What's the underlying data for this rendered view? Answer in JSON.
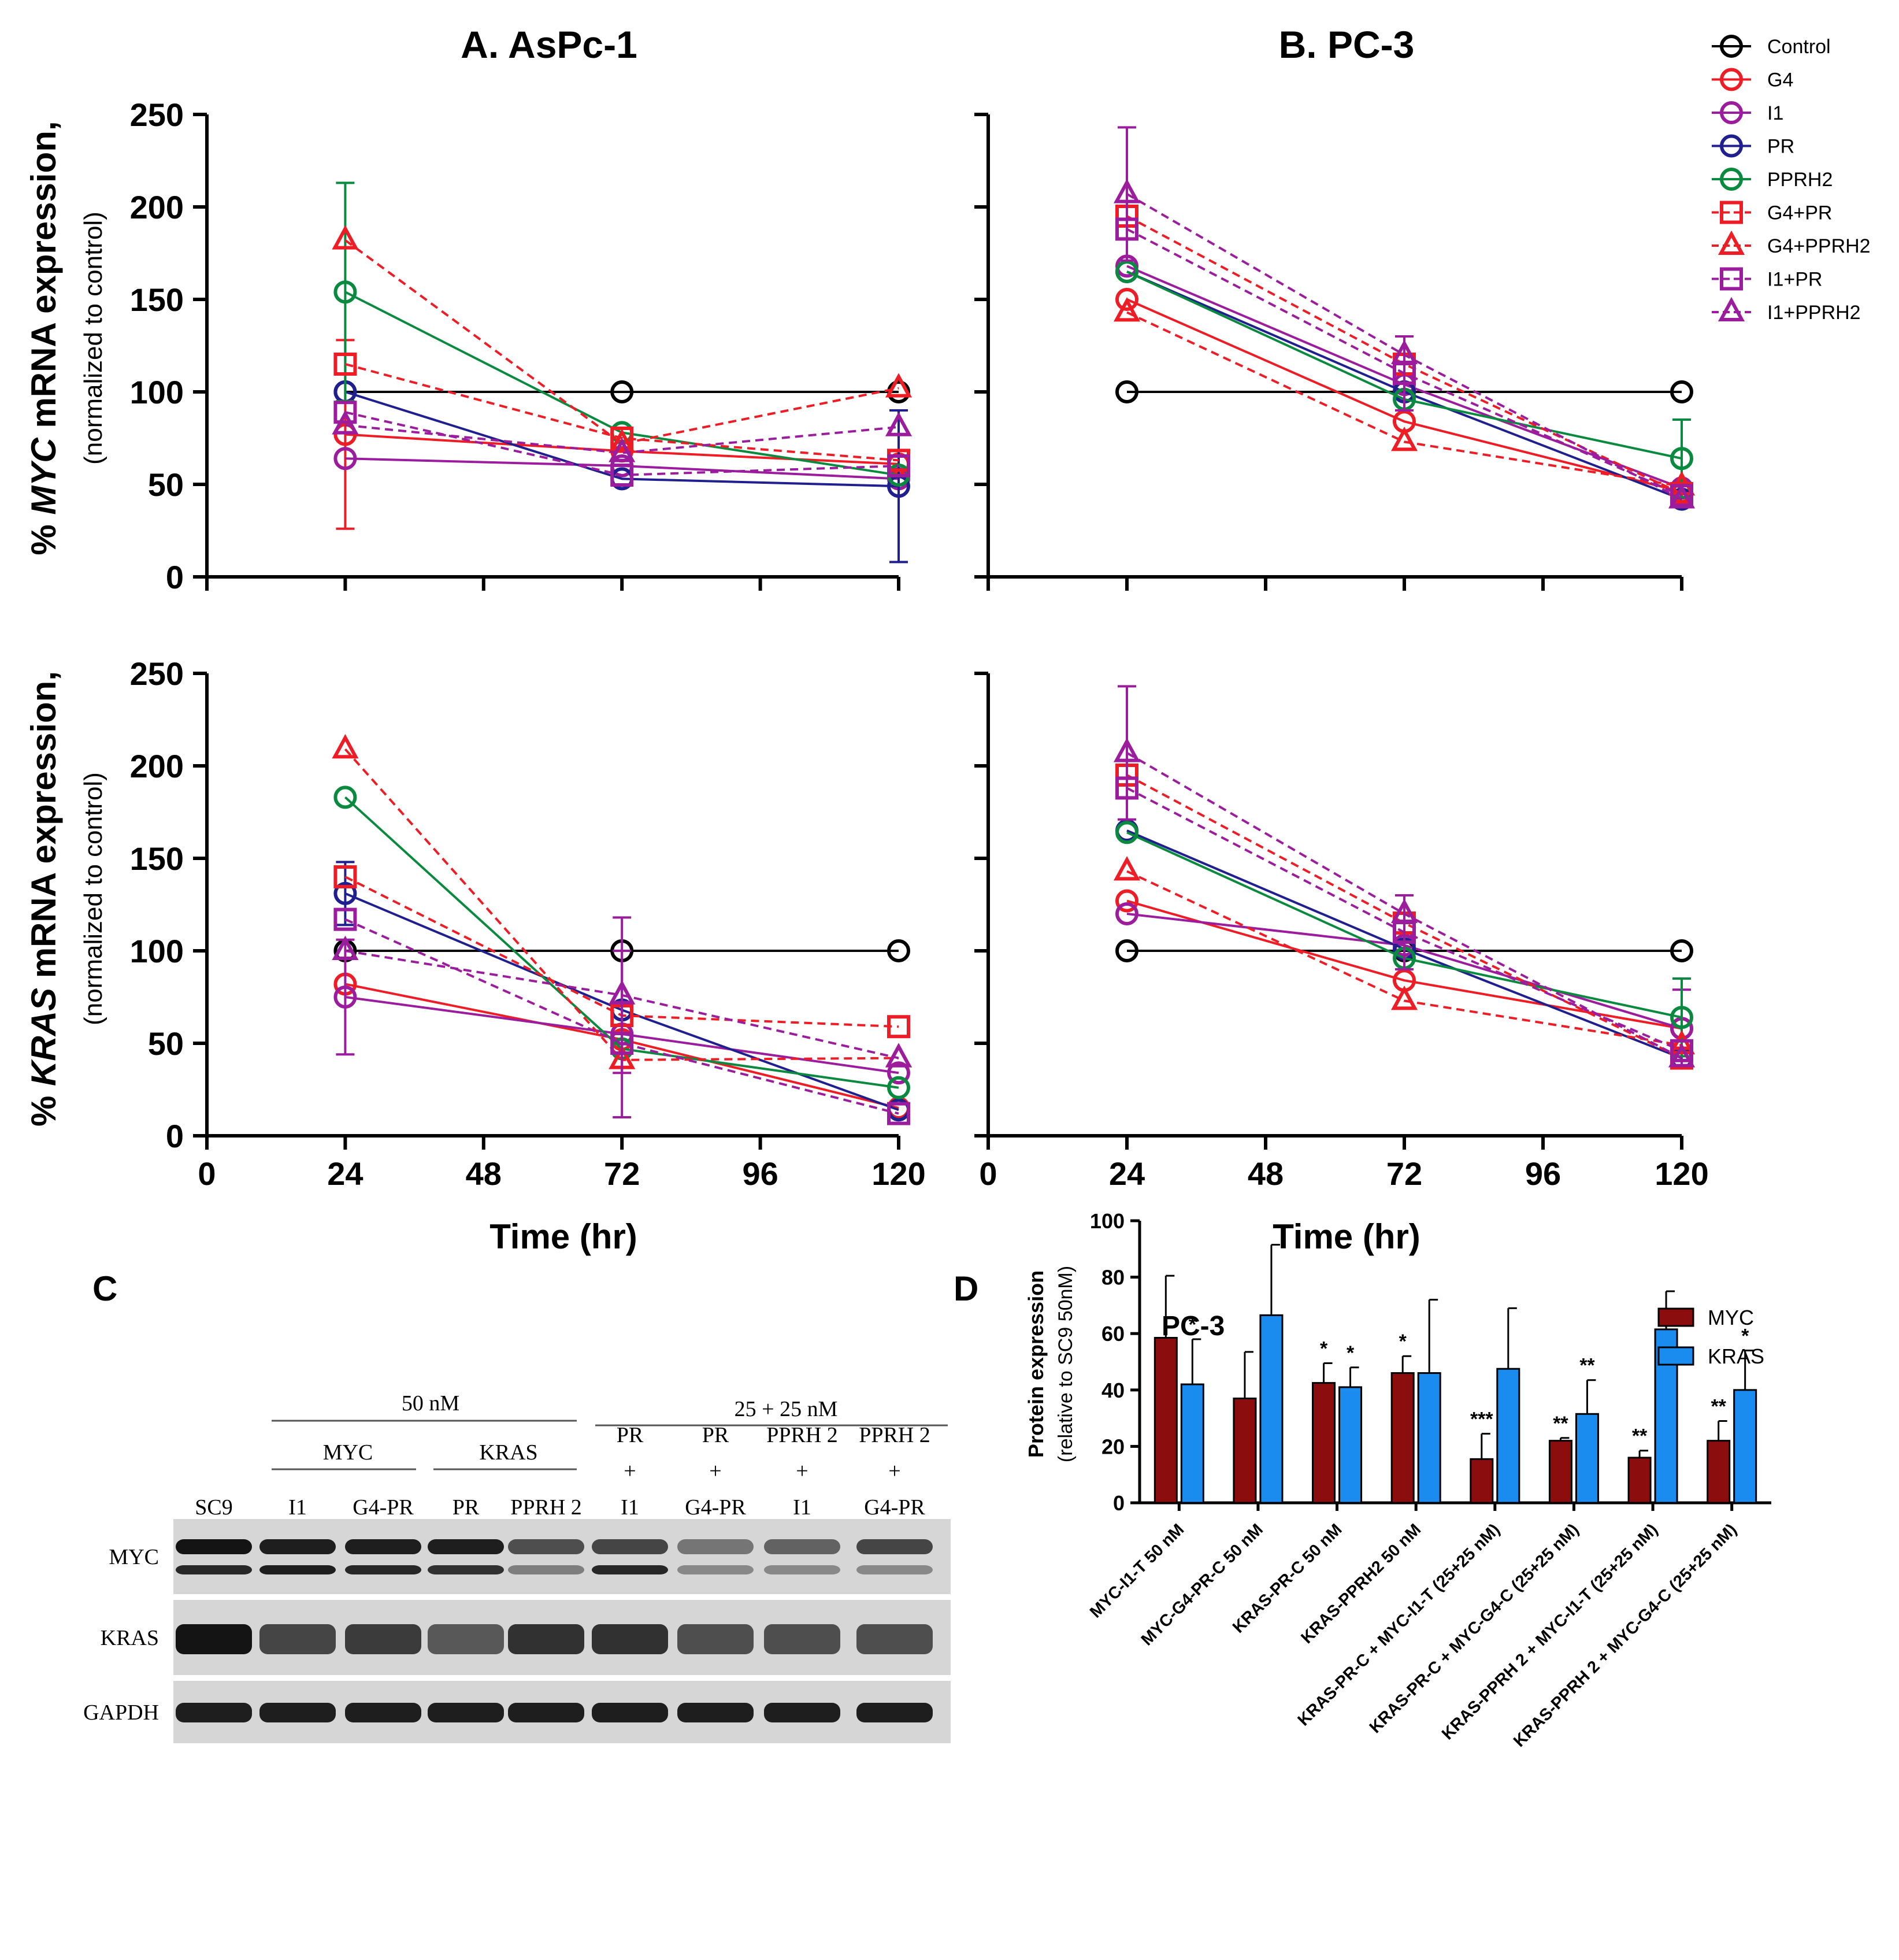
{
  "figure": {
    "panel_a_title": "A. AsPc-1",
    "panel_b_title": "B. PC-3",
    "panel_c_label": "C",
    "panel_d_label": "D",
    "x_axis_label": "Time (hr)",
    "myc_ylabel_prefix": "% ",
    "myc_ylabel_gene": "MYC",
    "myc_ylabel_suffix": " mRNA expression,",
    "kras_ylabel_prefix": "% ",
    "kras_ylabel_gene": "KRAS",
    "kras_ylabel_suffix": " mRNA expression,",
    "ylabel_sub": "(normalized to control)"
  },
  "colors": {
    "Control": "#000000",
    "G4": "#ee1c24",
    "I1": "#9b1d9e",
    "PR": "#1f1f8f",
    "PPRH2": "#0a8a3e",
    "G4+PR": "#ee1c24",
    "G4+PPRH2": "#ee1c24",
    "I1+PR": "#9b1d9e",
    "I1+PPRH2": "#9b1d9e",
    "myc_bar": "#8b0d0d",
    "kras_bar": "#1a8cf0"
  },
  "legend": {
    "items": [
      {
        "name": "Control",
        "marker": "circle",
        "dash": false
      },
      {
        "name": "G4",
        "marker": "circle",
        "dash": false
      },
      {
        "name": "I1",
        "marker": "circle",
        "dash": false
      },
      {
        "name": "PR",
        "marker": "circle",
        "dash": false
      },
      {
        "name": "PPRH2",
        "marker": "circle",
        "dash": false
      },
      {
        "name": "G4+PR",
        "marker": "square",
        "dash": true
      },
      {
        "name": "G4+PPRH2",
        "marker": "triangle",
        "dash": true
      },
      {
        "name": "I1+PR",
        "marker": "square",
        "dash": true
      },
      {
        "name": "I1+PPRH2",
        "marker": "triangle",
        "dash": true
      }
    ]
  },
  "chart_data": [
    {
      "id": "aspc1_myc",
      "type": "line",
      "title": "A. AsPc-1",
      "xlabel": "",
      "ylabel": "% MYC mRNA expression, (normalized to control)",
      "x": [
        24,
        72,
        120
      ],
      "xlim": [
        0,
        120
      ],
      "ylim": [
        0,
        250
      ],
      "xticks": [],
      "yticks": [
        0,
        50,
        100,
        150,
        200,
        250
      ],
      "series": [
        {
          "name": "Control",
          "values": [
            100,
            100,
            100
          ]
        },
        {
          "name": "G4",
          "values": [
            77,
            68,
            61
          ],
          "err": [
            51,
            0,
            0
          ]
        },
        {
          "name": "I1",
          "values": [
            64,
            60,
            53
          ]
        },
        {
          "name": "PR",
          "values": [
            100,
            53,
            49
          ],
          "err": [
            0,
            0,
            41
          ]
        },
        {
          "name": "PPRH2",
          "values": [
            154,
            78,
            55
          ],
          "err": [
            59,
            0,
            0
          ]
        },
        {
          "name": "G4+PR",
          "values": [
            115,
            75,
            63
          ]
        },
        {
          "name": "G4+PPRH2",
          "values": [
            182,
            72,
            102
          ]
        },
        {
          "name": "I1+PR",
          "values": [
            89,
            55,
            60
          ]
        },
        {
          "name": "I1+PPRH2",
          "values": [
            82,
            67,
            81
          ]
        }
      ]
    },
    {
      "id": "pc3_myc",
      "type": "line",
      "title": "B. PC-3",
      "xlabel": "",
      "ylabel": "",
      "x": [
        24,
        72,
        120
      ],
      "xlim": [
        0,
        120
      ],
      "ylim": [
        0,
        250
      ],
      "xticks": [],
      "yticks": [],
      "series": [
        {
          "name": "Control",
          "values": [
            100,
            100,
            100
          ]
        },
        {
          "name": "G4",
          "values": [
            150,
            84,
            46
          ]
        },
        {
          "name": "I1",
          "values": [
            168,
            104,
            48
          ]
        },
        {
          "name": "PR",
          "values": [
            165,
            100,
            42
          ]
        },
        {
          "name": "PPRH2",
          "values": [
            165,
            96,
            64
          ],
          "err": [
            0,
            0,
            21
          ]
        },
        {
          "name": "G4+PR",
          "values": [
            195,
            115,
            45
          ]
        },
        {
          "name": "G4+PPRH2",
          "values": [
            143,
            73,
            49
          ]
        },
        {
          "name": "I1+PR",
          "values": [
            188,
            110,
            44
          ],
          "err": [
            0,
            20,
            0
          ]
        },
        {
          "name": "I1+PPRH2",
          "values": [
            207,
            120,
            42
          ],
          "err": [
            36,
            0,
            0
          ]
        }
      ]
    },
    {
      "id": "aspc1_kras",
      "type": "line",
      "title": "",
      "xlabel": "Time (hr)",
      "ylabel": "% KRAS mRNA expression, (normalized to control)",
      "x": [
        24,
        72,
        120
      ],
      "xlim": [
        0,
        120
      ],
      "ylim": [
        0,
        250
      ],
      "xticks": [
        0,
        24,
        48,
        72,
        96,
        120
      ],
      "yticks": [
        0,
        50,
        100,
        150,
        200,
        250
      ],
      "series": [
        {
          "name": "Control",
          "values": [
            100,
            100,
            100
          ]
        },
        {
          "name": "G4",
          "values": [
            82,
            52,
            15
          ]
        },
        {
          "name": "I1",
          "values": [
            75,
            55,
            34
          ],
          "err": [
            31,
            45,
            0
          ]
        },
        {
          "name": "PR",
          "values": [
            131,
            68,
            14
          ],
          "err": [
            17,
            0,
            0
          ]
        },
        {
          "name": "PPRH2",
          "values": [
            183,
            47,
            26
          ]
        },
        {
          "name": "G4+PR",
          "values": [
            140,
            65,
            59
          ]
        },
        {
          "name": "G4+PPRH2",
          "values": [
            209,
            41,
            42
          ]
        },
        {
          "name": "I1+PR",
          "values": [
            117,
            50,
            12
          ]
        },
        {
          "name": "I1+PPRH2",
          "values": [
            100,
            76,
            42
          ],
          "err": [
            0,
            42,
            0
          ]
        }
      ]
    },
    {
      "id": "pc3_kras",
      "type": "line",
      "title": "",
      "xlabel": "Time (hr)",
      "ylabel": "",
      "x": [
        24,
        72,
        120
      ],
      "xlim": [
        0,
        120
      ],
      "ylim": [
        0,
        250
      ],
      "xticks": [
        0,
        24,
        48,
        72,
        96,
        120
      ],
      "yticks": [],
      "series": [
        {
          "name": "Control",
          "values": [
            100,
            100,
            100
          ]
        },
        {
          "name": "G4",
          "values": [
            127,
            84,
            58
          ]
        },
        {
          "name": "I1",
          "values": [
            120,
            103,
            58
          ],
          "err": [
            0,
            0,
            21
          ]
        },
        {
          "name": "PR",
          "values": [
            165,
            101,
            42
          ]
        },
        {
          "name": "PPRH2",
          "values": [
            164,
            96,
            64
          ],
          "err": [
            0,
            0,
            21
          ]
        },
        {
          "name": "G4+PR",
          "values": [
            195,
            115,
            42
          ]
        },
        {
          "name": "G4+PPRH2",
          "values": [
            143,
            73,
            49
          ]
        },
        {
          "name": "I1+PR",
          "values": [
            188,
            110,
            46
          ],
          "err": [
            0,
            20,
            0
          ]
        },
        {
          "name": "I1+PPRH2",
          "values": [
            207,
            120,
            42
          ],
          "err": [
            36,
            0,
            0
          ]
        }
      ]
    },
    {
      "id": "pc3_protein",
      "type": "bar",
      "title": "PC-3",
      "xlabel": "",
      "ylabel": "Protein expression",
      "ylabel_sub": "(relative to SC9 50nM)",
      "ylim": [
        0,
        100
      ],
      "yticks": [
        0,
        20,
        40,
        60,
        80,
        100
      ],
      "categories": [
        "MYC-I1-T 50 nM",
        "MYC-G4-PR-C 50 nM",
        "KRAS-PR-C 50 nM",
        "KRAS-PPRH2 50 nM",
        "KRAS-PR-C + MYC-I1-T (25+25 nM)",
        "KRAS-PR-C + MYC-G4-C (25+25 nM)",
        "KRAS-PPRH 2 + MYC-I1-T (25+25 nM)",
        "KRAS-PPRH 2 + MYC-G4-C (25+25 nM)"
      ],
      "series": [
        {
          "name": "MYC",
          "values": [
            58.5,
            37,
            42.5,
            46,
            15.5,
            22,
            16,
            22
          ],
          "err": [
            22,
            16.5,
            7,
            6,
            9,
            1,
            2.5,
            7
          ],
          "sig": [
            "",
            "",
            "*",
            "*",
            "***",
            "**",
            "**",
            "**"
          ]
        },
        {
          "name": "KRAS",
          "values": [
            42,
            66.5,
            41,
            46,
            47.5,
            31.5,
            61.5,
            40
          ],
          "err": [
            16,
            25,
            7,
            26,
            21.5,
            12,
            13.5,
            14
          ],
          "sig": [
            "*",
            "",
            "*",
            "",
            "",
            "**",
            "",
            "*"
          ]
        }
      ]
    }
  ],
  "blot": {
    "group1_header": "50 nM",
    "group2_header": "25 + 25 nM",
    "sub_myc": "MYC",
    "sub_kras": "KRAS",
    "lane_labels_line1": [
      "SC9",
      "I1",
      "G4-PR",
      "PR",
      "PPRH 2",
      "PR",
      "PR",
      "PPRH 2",
      "PPRH 2"
    ],
    "lane_labels_line2": [
      "",
      "",
      "",
      "",
      "",
      "+",
      "+",
      "+",
      "+"
    ],
    "lane_labels_line3": [
      "",
      "",
      "",
      "",
      "",
      "I1",
      "G4-PR",
      "I1",
      "G4-PR"
    ],
    "row_labels": [
      "MYC",
      "KRAS",
      "GAPDH"
    ]
  }
}
